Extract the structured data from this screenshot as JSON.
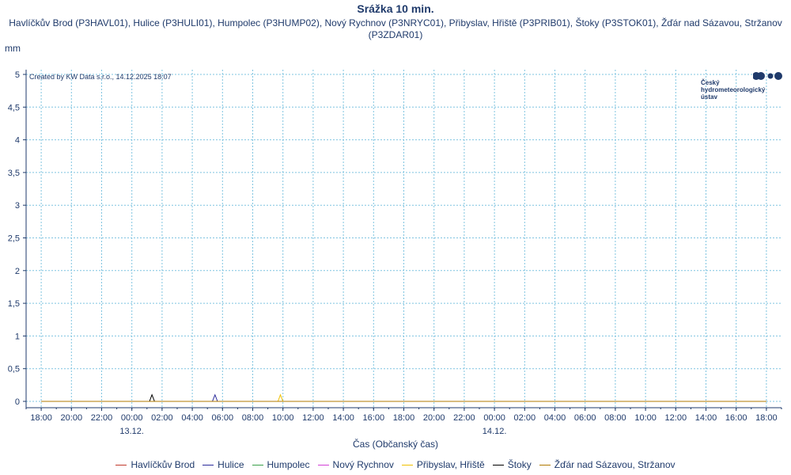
{
  "chart_data": {
    "type": "line",
    "title": "Srážka 10 min.",
    "subtitle": "Havlíčkův Brod (P3HAVL01), Hulice (P3HULI01), Humpolec (P3HUMP02), Nový Rychnov (P3NRYC01), Přibyslav, Hřiště (P3PRIB01), Štoky (P3STOK01), Žďár nad Sázavou, Stržanov (P3ZDAR01)",
    "ylabel": "mm",
    "xlabel": "Čas (Občanský čas)",
    "credit": "Created by KW Data s.r.o., 14.12.2025 18:07",
    "ylim": [
      0,
      5
    ],
    "yticks": [
      0,
      0.5,
      1,
      1.5,
      2,
      2.5,
      3,
      3.5,
      4,
      4.5,
      5
    ],
    "ytick_labels": [
      "0",
      "0,5",
      "1",
      "1,5",
      "2",
      "2,5",
      "3",
      "3,5",
      "4",
      "4,5",
      "5"
    ],
    "xlim_hours": [
      -1,
      49
    ],
    "xticks_hours": [
      0,
      2,
      4,
      6,
      8,
      10,
      12,
      14,
      16,
      18,
      20,
      22,
      24,
      26,
      28,
      30,
      32,
      34,
      36,
      38,
      40,
      42,
      44,
      46,
      48
    ],
    "xtick_labels": [
      "18:00",
      "20:00",
      "22:00",
      "00:00",
      "02:00",
      "04:00",
      "06:00",
      "08:00",
      "10:00",
      "12:00",
      "14:00",
      "16:00",
      "18:00",
      "20:00",
      "22:00",
      "00:00",
      "02:00",
      "04:00",
      "06:00",
      "08:00",
      "10:00",
      "12:00",
      "14:00",
      "16:00",
      "18:00"
    ],
    "date_labels": [
      {
        "hour": 6,
        "text": "13.12."
      },
      {
        "hour": 30,
        "text": "14.12."
      }
    ],
    "grid": true,
    "legend_position": "bottom",
    "series": [
      {
        "name": "Havlíčkův Brod",
        "color": "#c0392b",
        "points": [
          [
            0,
            0
          ],
          [
            48,
            0
          ]
        ]
      },
      {
        "name": "Hulice",
        "color": "#2a2a9a",
        "points": [
          [
            0,
            0
          ],
          [
            11.33,
            0
          ],
          [
            11.5,
            0.1
          ],
          [
            11.67,
            0
          ],
          [
            48,
            0
          ]
        ]
      },
      {
        "name": "Humpolec",
        "color": "#3aa04a",
        "points": [
          [
            0,
            0
          ],
          [
            48,
            0
          ]
        ]
      },
      {
        "name": "Nový Rychnov",
        "color": "#d23fd6",
        "points": [
          [
            0,
            0
          ],
          [
            48,
            0
          ]
        ]
      },
      {
        "name": "Přibyslav, Hřiště",
        "color": "#f0c000",
        "points": [
          [
            0,
            0
          ],
          [
            15.67,
            0
          ],
          [
            15.83,
            0.1
          ],
          [
            16,
            0
          ],
          [
            48,
            0
          ]
        ]
      },
      {
        "name": "Štoky",
        "color": "#000000",
        "points": [
          [
            0,
            0
          ],
          [
            7.17,
            0
          ],
          [
            7.33,
            0.1
          ],
          [
            7.5,
            0
          ],
          [
            48,
            0
          ]
        ]
      },
      {
        "name": "Žďár nad Sázavou, Stržanov",
        "color": "#b07800",
        "points": [
          [
            0,
            0
          ],
          [
            48,
            0
          ]
        ]
      }
    ]
  },
  "logo": {
    "lines": [
      "Český",
      "hydrometeorologický",
      "ústav"
    ],
    "color": "#1f3a6b"
  }
}
